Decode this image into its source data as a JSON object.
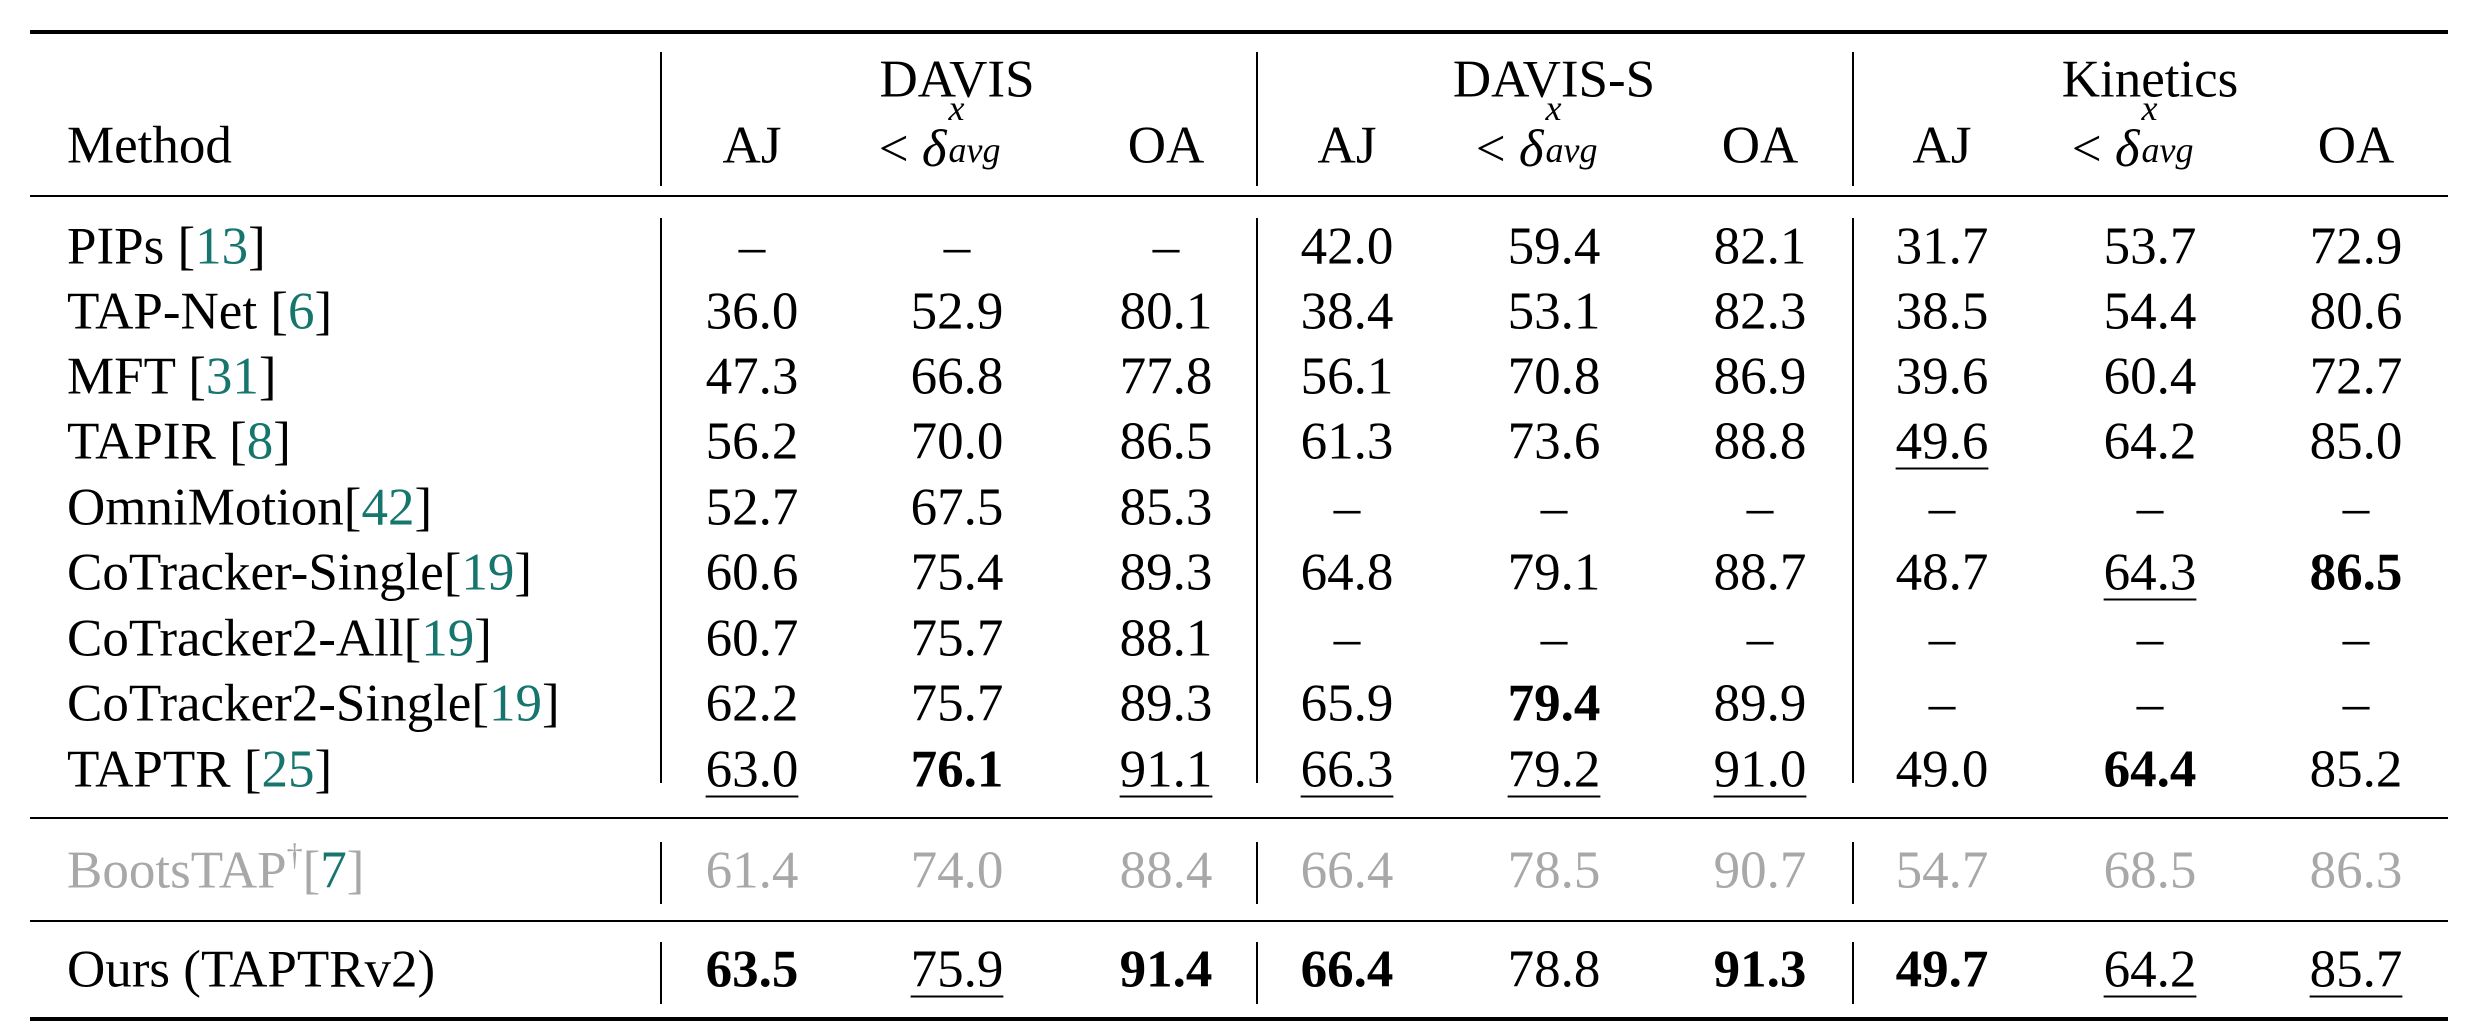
{
  "groups": [
    "DAVIS",
    "DAVIS-S",
    "Kinetics"
  ],
  "method_header": "Method",
  "metric_headers": [
    {
      "type": "text",
      "text": "AJ"
    },
    {
      "type": "delta",
      "lt": "<",
      "delta": "δ",
      "sup": "x",
      "sub": "avg"
    },
    {
      "type": "text",
      "text": "OA"
    }
  ],
  "rows": [
    {
      "method": "PIPs [",
      "cite": "13",
      "close": "]",
      "values": [
        "–",
        "–",
        "–",
        "42.0",
        "59.4",
        "82.1",
        "31.7",
        "53.7",
        "72.9"
      ],
      "bold": [],
      "underline": [],
      "gray": false
    },
    {
      "method": "TAP-Net [",
      "cite": "6",
      "close": "]",
      "values": [
        "36.0",
        "52.9",
        "80.1",
        "38.4",
        "53.1",
        "82.3",
        "38.5",
        "54.4",
        "80.6"
      ],
      "bold": [],
      "underline": [],
      "gray": false
    },
    {
      "method": "MFT [",
      "cite": "31",
      "close": "]",
      "values": [
        "47.3",
        "66.8",
        "77.8",
        "56.1",
        "70.8",
        "86.9",
        "39.6",
        "60.4",
        "72.7"
      ],
      "bold": [],
      "underline": [],
      "gray": false
    },
    {
      "method": "TAPIR [",
      "cite": "8",
      "close": "]",
      "values": [
        "56.2",
        "70.0",
        "86.5",
        "61.3",
        "73.6",
        "88.8",
        "49.6",
        "64.2",
        "85.0"
      ],
      "bold": [],
      "underline": [
        6
      ],
      "gray": false
    },
    {
      "method": "OmniMotion[",
      "cite": "42",
      "close": "]",
      "values": [
        "52.7",
        "67.5",
        "85.3",
        "–",
        "–",
        "–",
        "–",
        "–",
        "–"
      ],
      "bold": [],
      "underline": [],
      "gray": false
    },
    {
      "method": "CoTracker-Single[",
      "cite": "19",
      "close": "]",
      "values": [
        "60.6",
        "75.4",
        "89.3",
        "64.8",
        "79.1",
        "88.7",
        "48.7",
        "64.3",
        "86.5"
      ],
      "bold": [
        8
      ],
      "underline": [
        7
      ],
      "gray": false
    },
    {
      "method": "CoTracker2-All[",
      "cite": "19",
      "close": "]",
      "values": [
        "60.7",
        "75.7",
        "88.1",
        "–",
        "–",
        "–",
        "–",
        "–",
        "–"
      ],
      "bold": [],
      "underline": [],
      "gray": false
    },
    {
      "method": "CoTracker2-Single[",
      "cite": "19",
      "close": "]",
      "values": [
        "62.2",
        "75.7",
        "89.3",
        "65.9",
        "79.4",
        "89.9",
        "–",
        "–",
        "–"
      ],
      "bold": [
        4
      ],
      "underline": [],
      "gray": false
    },
    {
      "method": "TAPTR [",
      "cite": "25",
      "close": "]",
      "values": [
        "63.0",
        "76.1",
        "91.1",
        "66.3",
        "79.2",
        "91.0",
        "49.0",
        "64.4",
        "85.2"
      ],
      "bold": [
        1,
        7
      ],
      "underline": [
        0,
        2,
        3,
        4,
        5
      ],
      "gray": false
    },
    {
      "method": "BootsTAP",
      "dagger": "†",
      "cite_open": "[",
      "cite": "7",
      "close": "]",
      "values": [
        "61.4",
        "74.0",
        "88.4",
        "66.4",
        "78.5",
        "90.7",
        "54.7",
        "68.5",
        "86.3"
      ],
      "bold": [],
      "underline": [],
      "gray": true
    },
    {
      "method": "Ours (TAPTRv2)",
      "cite": "",
      "close": "",
      "values": [
        "63.5",
        "75.9",
        "91.4",
        "66.4",
        "78.8",
        "91.3",
        "49.7",
        "64.2",
        "85.7"
      ],
      "bold": [
        0,
        2,
        3,
        5,
        6
      ],
      "underline": [
        1,
        7,
        8
      ],
      "gray": false
    }
  ]
}
